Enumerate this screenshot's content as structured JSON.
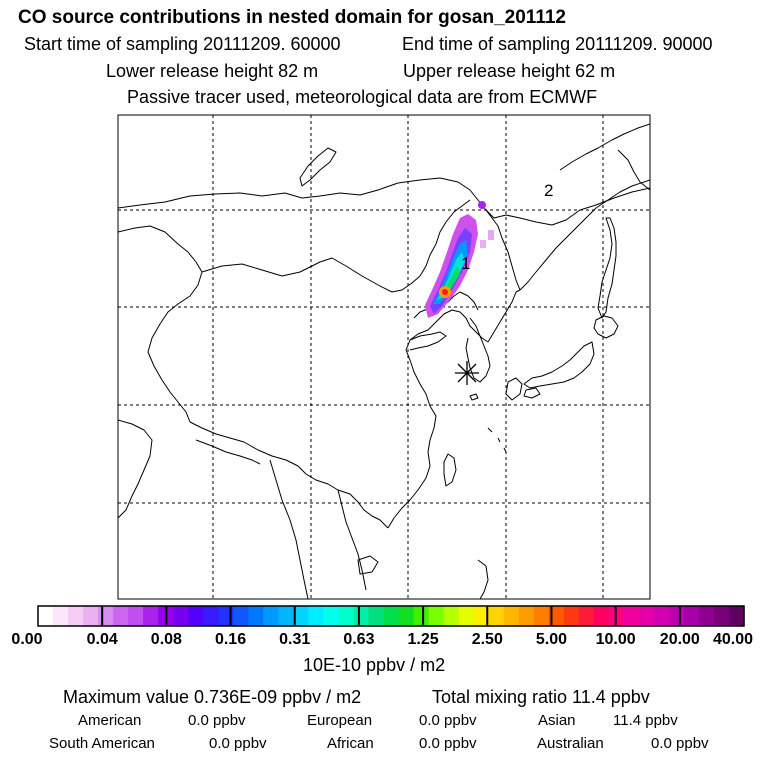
{
  "header": {
    "title": "CO  source contributions in nested domain for gosan_201112",
    "start_time": "Start time of sampling 20111209. 60000",
    "end_time": "End time of sampling 20111209. 90000",
    "lower_release": "Lower release height   82 m",
    "upper_release": "Upper release height   62 m",
    "tracer_note": "Passive tracer used, meteorological data are from ECMWF"
  },
  "map": {
    "receptor_symbol": "✳",
    "region_labels": [
      "1",
      "2"
    ],
    "border_color": "#000000",
    "grid_style": "dashed"
  },
  "colorbar": {
    "colors": [
      "#ffffff",
      "#fbe6fb",
      "#f4ccf6",
      "#eab0f2",
      "#d98df0",
      "#cc66f0",
      "#c04ff0",
      "#aa22ee",
      "#9500f0",
      "#7a00f0",
      "#5500ff",
      "#3a1aff",
      "#2233ff",
      "#1158ff",
      "#0077ff",
      "#0099ff",
      "#00b6ff",
      "#00d4ff",
      "#00ecff",
      "#00ffee",
      "#00ffcc",
      "#00f0a8",
      "#00e080",
      "#00e04a",
      "#10e020",
      "#40f000",
      "#7aff00",
      "#b4ff00",
      "#e6ff00",
      "#ffee00",
      "#ffd400",
      "#ffb800",
      "#ff9c00",
      "#ff7e00",
      "#ff5a00",
      "#ff3a10",
      "#ff1a3a",
      "#ff0060",
      "#ff0080",
      "#f0009a",
      "#e600aa",
      "#d400b0",
      "#c000b0",
      "#a800a8",
      "#900090",
      "#78007a",
      "#600060"
    ],
    "ticks": [
      "0.00",
      "0.04",
      "0.08",
      "0.16",
      "0.31",
      "0.63",
      "1.25",
      "2.50",
      "5.00",
      "10.00",
      "20.00",
      "40.00"
    ],
    "unit": "10E-10 ppbv / m2"
  },
  "stats": {
    "max_value": "Maximum value  0.736E-09 ppbv / m2",
    "total_mixing": "Total mixing ratio        11.4 ppbv",
    "regions": [
      {
        "name": "American",
        "value": "0.0 ppbv"
      },
      {
        "name": "European",
        "value": "0.0 ppbv"
      },
      {
        "name": "Asian",
        "value": "11.4 ppbv"
      },
      {
        "name": "South American",
        "value": "0.0 ppbv"
      },
      {
        "name": "African",
        "value": "0.0 ppbv"
      },
      {
        "name": "Australian",
        "value": "0.0 ppbv"
      }
    ]
  }
}
